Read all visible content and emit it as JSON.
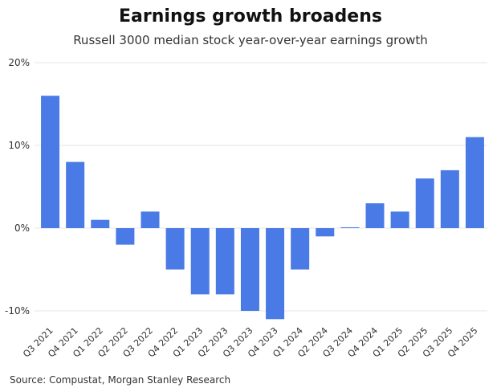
{
  "title": "Earnings growth broadens",
  "subtitle": "Russell 3000 median stock year-over-year earnings growth",
  "source": "Source: Compustat, Morgan Stanley Research",
  "colors": {
    "bar": "#4a7ae6",
    "grid": "#e6e6e6"
  },
  "chart_data": {
    "type": "bar",
    "title": "Earnings growth broadens",
    "subtitle": "Russell 3000 median stock year-over-year earnings growth",
    "categories": [
      "Q3 2021",
      "Q4 2021",
      "Q1 2022",
      "Q2 2022",
      "Q3 2022",
      "Q4 2022",
      "Q1 2023",
      "Q2 2023",
      "Q3 2023",
      "Q4 2023",
      "Q1 2024",
      "Q2 2024",
      "Q3 2024",
      "Q4 2024",
      "Q1 2025",
      "Q2 2025",
      "Q3 2025",
      "Q4 2025"
    ],
    "values": [
      16,
      8,
      1,
      -2,
      2,
      -5,
      -8,
      -8,
      -10,
      -11,
      -5,
      -1,
      0.1,
      3,
      2,
      6,
      7,
      11
    ],
    "ylim": [
      -12,
      20
    ],
    "yticks": [
      20,
      10,
      0,
      -10
    ],
    "ytick_labels": [
      "20%",
      "10%",
      "0%",
      "-10%"
    ],
    "xlabel": "",
    "ylabel": "",
    "grid": true,
    "legend": "none"
  }
}
